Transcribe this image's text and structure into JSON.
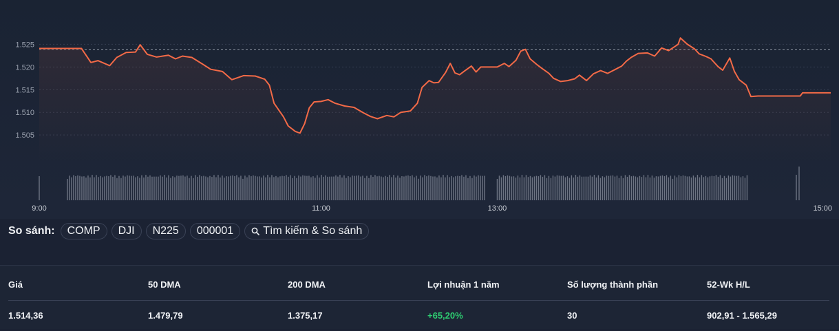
{
  "chart_data": {
    "type": "line",
    "y_ticks": [
      "1.525",
      "1.520",
      "1.515",
      "1.510",
      "1.505"
    ],
    "y_tick_values": [
      1525,
      1520,
      1515,
      1510,
      1505
    ],
    "ylim": [
      1500.7,
      1528.1
    ],
    "x_ticks": [
      "9:00",
      "11:00",
      "13:00",
      "15:00"
    ],
    "x_tick_values": [
      "09:00",
      "11:00",
      "13:00",
      "15:00"
    ],
    "reference_line": 1523.9,
    "grid": true,
    "line_color": "#f36a47",
    "series": [
      {
        "points": [
          [
            "09:00",
            1524.1
          ],
          [
            "09:18",
            1524.1
          ],
          [
            "09:22",
            1521.0
          ],
          [
            "09:25",
            1521.4
          ],
          [
            "09:30",
            1520.3
          ],
          [
            "09:33",
            1522.1
          ],
          [
            "09:37",
            1523.2
          ],
          [
            "09:41",
            1523.3
          ],
          [
            "09:43",
            1524.9
          ],
          [
            "09:46",
            1522.8
          ],
          [
            "09:50",
            1522.2
          ],
          [
            "09:55",
            1522.6
          ],
          [
            "09:58",
            1521.8
          ],
          [
            "10:01",
            1522.4
          ],
          [
            "10:05",
            1522.1
          ],
          [
            "10:10",
            1520.5
          ],
          [
            "10:13",
            1519.5
          ],
          [
            "10:18",
            1519.0
          ],
          [
            "10:22",
            1517.2
          ],
          [
            "10:27",
            1518.1
          ],
          [
            "10:32",
            1518.0
          ],
          [
            "10:36",
            1517.3
          ],
          [
            "10:38",
            1516.0
          ],
          [
            "10:40",
            1512.0
          ],
          [
            "10:44",
            1509.0
          ],
          [
            "10:46",
            1507.0
          ],
          [
            "10:49",
            1505.8
          ],
          [
            "10:51",
            1505.4
          ],
          [
            "10:53",
            1507.5
          ],
          [
            "10:55",
            1511.0
          ],
          [
            "10:57",
            1512.3
          ],
          [
            "11:00",
            1512.4
          ],
          [
            "11:03",
            1512.8
          ],
          [
            "11:06",
            1512.0
          ],
          [
            "11:10",
            1511.4
          ],
          [
            "11:14",
            1511.1
          ],
          [
            "11:18",
            1509.9
          ],
          [
            "11:21",
            1509.1
          ],
          [
            "11:24",
            1508.6
          ],
          [
            "11:28",
            1509.3
          ],
          [
            "11:31",
            1509.0
          ],
          [
            "11:34",
            1510.0
          ],
          [
            "11:38",
            1510.3
          ],
          [
            "11:41",
            1512.0
          ],
          [
            "11:43",
            1515.5
          ],
          [
            "11:46",
            1517.0
          ],
          [
            "11:48",
            1516.5
          ],
          [
            "11:50",
            1516.6
          ],
          [
            "11:53",
            1518.8
          ],
          [
            "11:55",
            1520.8
          ],
          [
            "11:57",
            1518.7
          ],
          [
            "11:59",
            1518.3
          ],
          [
            "12:01",
            1519.1
          ],
          [
            "12:04",
            1520.2
          ],
          [
            "12:06",
            1518.9
          ],
          [
            "12:08",
            1520.0
          ],
          [
            "13:00",
            1520.0
          ],
          [
            "13:03",
            1520.8
          ],
          [
            "13:05",
            1520.1
          ],
          [
            "13:08",
            1521.5
          ],
          [
            "13:10",
            1523.5
          ],
          [
            "13:12",
            1523.9
          ],
          [
            "13:14",
            1521.8
          ],
          [
            "13:17",
            1520.5
          ],
          [
            "13:19",
            1519.7
          ],
          [
            "13:22",
            1518.6
          ],
          [
            "13:24",
            1517.5
          ],
          [
            "13:27",
            1516.8
          ],
          [
            "13:30",
            1517.0
          ],
          [
            "13:33",
            1517.4
          ],
          [
            "13:35",
            1518.2
          ],
          [
            "13:38",
            1517.0
          ],
          [
            "13:41",
            1518.5
          ],
          [
            "13:44",
            1519.2
          ],
          [
            "13:47",
            1518.6
          ],
          [
            "13:50",
            1519.4
          ],
          [
            "13:53",
            1520.2
          ],
          [
            "13:55",
            1521.3
          ],
          [
            "13:57",
            1522.1
          ],
          [
            "14:00",
            1523.0
          ],
          [
            "14:04",
            1523.1
          ],
          [
            "14:07",
            1522.4
          ],
          [
            "14:10",
            1524.2
          ],
          [
            "14:13",
            1523.6
          ],
          [
            "14:17",
            1525.0
          ],
          [
            "14:18",
            1526.4
          ],
          [
            "14:21",
            1525.0
          ],
          [
            "14:24",
            1524.0
          ],
          [
            "14:26",
            1522.9
          ],
          [
            "14:29",
            1522.3
          ],
          [
            "14:31",
            1521.8
          ],
          [
            "14:34",
            1520.1
          ],
          [
            "14:36",
            1519.3
          ],
          [
            "14:39",
            1522.0
          ],
          [
            "14:41",
            1519.0
          ],
          [
            "14:43",
            1517.2
          ],
          [
            "14:46",
            1516.0
          ],
          [
            "14:48",
            1513.5
          ],
          [
            "14:51",
            1513.6
          ],
          [
            "14:58",
            1513.6
          ],
          [
            "15:00",
            1513.6
          ],
          [
            "15:09",
            1513.6
          ],
          [
            "15:10",
            1514.3
          ],
          [
            "15:22",
            1514.3
          ]
        ]
      }
    ],
    "volume_sessions": [
      [
        "09:12",
        "12:10"
      ],
      [
        "13:00",
        "14:47"
      ]
    ]
  },
  "compare": {
    "label": "So sánh:",
    "chips": [
      "COMP",
      "DJI",
      "N225",
      "000001"
    ],
    "search_label": "Tìm kiếm & So sánh",
    "search_icon": "magnifier-icon"
  },
  "stats": {
    "headers": [
      "Giá",
      "50 DMA",
      "200 DMA",
      "Lợi nhuận 1 năm",
      "Số lượng thành phần",
      "52-Wk H/L"
    ],
    "values": [
      "1.514,36",
      "1.479,79",
      "1.375,17",
      "+65,20%",
      "30",
      "902,91 - 1.565,29"
    ],
    "positive_color": "#2ecc71"
  }
}
